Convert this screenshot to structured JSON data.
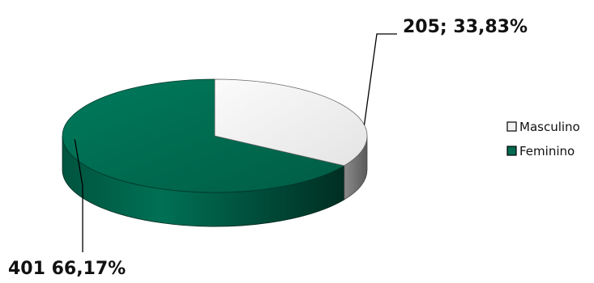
{
  "chart_data": {
    "type": "pie",
    "style": "3d",
    "categories": [
      "Masculino",
      "Feminino"
    ],
    "values": [
      205,
      401
    ],
    "percentages": [
      "33,83%",
      "66,17%"
    ],
    "data_labels": [
      "205; 33,83%",
      "401 66,17%"
    ],
    "colors": [
      "#f2f2f2",
      "#006b50"
    ],
    "legend": {
      "placement": "right",
      "entries": [
        "Masculino",
        "Feminino"
      ]
    }
  }
}
